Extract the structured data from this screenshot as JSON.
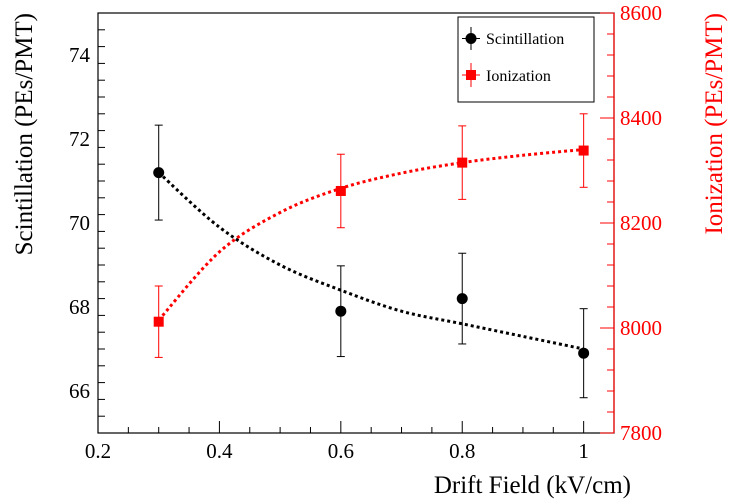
{
  "chart_data": {
    "type": "scatter",
    "xlabel": "Drift Field (kV/cm)",
    "ylabel_left": "Scintillation (PEs/PMT)",
    "ylabel_right": "Ionization (PEs/PMT)",
    "xlim": [
      0.2,
      1.05
    ],
    "ylim_left": [
      65.0,
      75.0
    ],
    "ylim_right": [
      7800,
      8600
    ],
    "x_ticks": [
      0.2,
      0.4,
      0.6,
      0.8,
      1.0
    ],
    "x_tick_labels": [
      "0.2",
      "0.4",
      "0.6",
      "0.8",
      "1"
    ],
    "y_left_ticks": [
      66,
      68,
      70,
      72,
      74
    ],
    "y_left_tick_labels": [
      "66",
      "68",
      "70",
      "72",
      "74"
    ],
    "y_right_ticks": [
      7800,
      8000,
      8200,
      8400,
      8600
    ],
    "y_right_tick_labels": [
      "7800",
      "8000",
      "8200",
      "8400",
      "8600"
    ],
    "legend_position": "top-right",
    "series": [
      {
        "name": "Scintillation",
        "axis": "left",
        "marker": "circle",
        "color": "#000000",
        "x": [
          0.3,
          0.6,
          0.8,
          1.0
        ],
        "y": [
          71.2,
          67.9,
          68.2,
          66.9
        ],
        "yerr": [
          1.13,
          1.08,
          1.08,
          1.06
        ],
        "fit": {
          "x": [
            0.3,
            0.4,
            0.5,
            0.6,
            0.7,
            0.8,
            0.9,
            1.0
          ],
          "y": [
            71.2,
            69.9,
            69.0,
            68.4,
            67.9,
            67.6,
            67.3,
            67.0
          ]
        }
      },
      {
        "name": "Ionization",
        "axis": "right",
        "marker": "square",
        "color": "#ff0000",
        "x": [
          0.3,
          0.6,
          0.8,
          1.0
        ],
        "y": [
          8012,
          8261,
          8315,
          8338
        ],
        "yerr": [
          68,
          70,
          70,
          70
        ],
        "fit": {
          "x": [
            0.3,
            0.4,
            0.5,
            0.6,
            0.7,
            0.8,
            0.9,
            1.0
          ],
          "y": [
            8015,
            8145,
            8220,
            8266,
            8295,
            8315,
            8329,
            8340
          ]
        }
      }
    ]
  }
}
